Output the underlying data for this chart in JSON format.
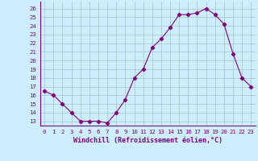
{
  "x": [
    0,
    1,
    2,
    3,
    4,
    5,
    6,
    7,
    8,
    9,
    10,
    11,
    12,
    13,
    14,
    15,
    16,
    17,
    18,
    19,
    20,
    21,
    22,
    23
  ],
  "y": [
    16.5,
    16.0,
    15.0,
    14.0,
    13.0,
    13.0,
    13.0,
    12.8,
    14.0,
    15.5,
    18.0,
    19.0,
    21.5,
    22.5,
    23.8,
    25.3,
    25.3,
    25.5,
    26.0,
    25.3,
    24.2,
    20.8,
    18.0,
    17.0
  ],
  "line_color": "#800080",
  "marker": "D",
  "marker_size": 2.2,
  "bg_color": "#cceeff",
  "grid_color": "#aacccc",
  "xlabel": "Windchill (Refroidissement éolien,°C)",
  "ylabel_ticks": [
    13,
    14,
    15,
    16,
    17,
    18,
    19,
    20,
    21,
    22,
    23,
    24,
    25,
    26
  ],
  "ylim": [
    12.5,
    26.8
  ],
  "xlim": [
    -0.5,
    23.5
  ],
  "xtick_labels": [
    "0",
    "1",
    "2",
    "3",
    "4",
    "5",
    "6",
    "7",
    "8",
    "9",
    "10",
    "11",
    "12",
    "13",
    "14",
    "15",
    "16",
    "17",
    "18",
    "19",
    "20",
    "21",
    "22",
    "23"
  ]
}
